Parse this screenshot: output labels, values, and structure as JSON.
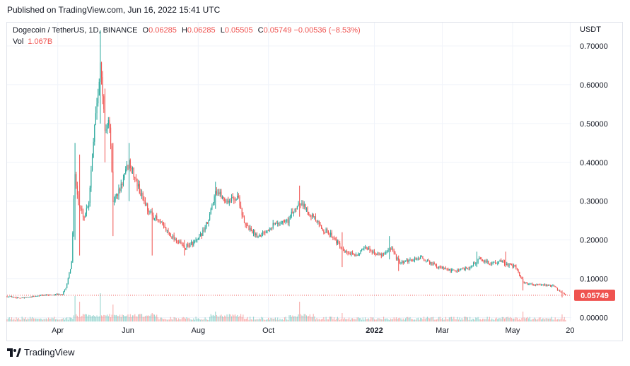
{
  "header": {
    "published": "Published on TradingView.com, Jun 16, 2022 15:41 UTC"
  },
  "legend": {
    "symbol": "Dogecoin / TetherUS, 1D, BINANCE",
    "o_label": "O",
    "o_value": "0.06285",
    "h_label": "H",
    "h_value": "0.06285",
    "l_label": "L",
    "l_value": "0.05505",
    "c_label": "C",
    "c_value": "0.05749",
    "change": "−0.00536 (−8.53%)",
    "vol_label": "Vol",
    "vol_value": "1.067B"
  },
  "currency": "USDT",
  "footer": {
    "brand": "TradingView",
    "logo_icon": "tradingview-logo-icon"
  },
  "colors": {
    "up": "#26a69a",
    "down": "#ef5350",
    "grid": "#f0f3fa",
    "price_line": "#ef5350"
  },
  "chart_data": {
    "type": "candlestick",
    "symbol": "DOGEUSDT",
    "interval": "1D",
    "ylim": [
      -0.01,
      0.76
    ],
    "yticks": [
      0.0,
      0.1,
      0.2,
      0.3,
      0.4,
      0.5,
      0.6,
      0.7
    ],
    "ytick_labels": [
      "0.00000",
      "0.10000",
      "0.20000",
      "0.30000",
      "0.40000",
      "0.50000",
      "0.60000",
      "0.70000"
    ],
    "x_start": "2021-02-16",
    "x_end": "2022-06-21",
    "xticks": [
      {
        "date": "2021-04-01",
        "label": "Apr",
        "bold": false
      },
      {
        "date": "2021-06-01",
        "label": "Jun",
        "bold": false
      },
      {
        "date": "2021-08-01",
        "label": "Aug",
        "bold": false
      },
      {
        "date": "2021-10-01",
        "label": "Oct",
        "bold": false
      },
      {
        "date": "2022-01-01",
        "label": "2022",
        "bold": true
      },
      {
        "date": "2022-03-01",
        "label": "Mar",
        "bold": false
      },
      {
        "date": "2022-05-01",
        "label": "May",
        "bold": false
      },
      {
        "date": "2022-06-20",
        "label": "20",
        "bold": false
      }
    ],
    "last_price": 0.05749,
    "last_price_label": "0.05749",
    "price_path": [
      [
        "2021-02-16",
        0.055
      ],
      [
        "2021-03-01",
        0.05
      ],
      [
        "2021-03-20",
        0.058
      ],
      [
        "2021-04-05",
        0.06
      ],
      [
        "2021-04-08",
        0.075
      ],
      [
        "2021-04-13",
        0.14
      ],
      [
        "2021-04-16",
        0.38
      ],
      [
        "2021-04-19",
        0.29
      ],
      [
        "2021-04-24",
        0.26
      ],
      [
        "2021-04-28",
        0.3
      ],
      [
        "2021-05-03",
        0.5
      ],
      [
        "2021-05-08",
        0.65
      ],
      [
        "2021-05-12",
        0.49
      ],
      [
        "2021-05-16",
        0.5
      ],
      [
        "2021-05-19",
        0.3
      ],
      [
        "2021-05-25",
        0.33
      ],
      [
        "2021-06-02",
        0.4
      ],
      [
        "2021-06-12",
        0.32
      ],
      [
        "2021-06-20",
        0.27
      ],
      [
        "2021-06-27",
        0.25
      ],
      [
        "2021-07-06",
        0.22
      ],
      [
        "2021-07-20",
        0.18
      ],
      [
        "2021-08-01",
        0.2
      ],
      [
        "2021-08-10",
        0.25
      ],
      [
        "2021-08-16",
        0.33
      ],
      [
        "2021-08-25",
        0.3
      ],
      [
        "2021-09-05",
        0.31
      ],
      [
        "2021-09-10",
        0.24
      ],
      [
        "2021-09-22",
        0.21
      ],
      [
        "2021-10-05",
        0.24
      ],
      [
        "2021-10-18",
        0.25
      ],
      [
        "2021-10-28",
        0.3
      ],
      [
        "2021-11-06",
        0.27
      ],
      [
        "2021-11-16",
        0.23
      ],
      [
        "2021-11-26",
        0.21
      ],
      [
        "2021-12-05",
        0.17
      ],
      [
        "2021-12-15",
        0.16
      ],
      [
        "2021-12-25",
        0.18
      ],
      [
        "2022-01-06",
        0.16
      ],
      [
        "2022-01-15",
        0.18
      ],
      [
        "2022-01-23",
        0.14
      ],
      [
        "2022-02-05",
        0.15
      ],
      [
        "2022-02-10",
        0.155
      ],
      [
        "2022-02-25",
        0.13
      ],
      [
        "2022-03-10",
        0.12
      ],
      [
        "2022-03-25",
        0.13
      ],
      [
        "2022-04-02",
        0.15
      ],
      [
        "2022-04-12",
        0.14
      ],
      [
        "2022-04-20",
        0.145
      ],
      [
        "2022-04-28",
        0.135
      ],
      [
        "2022-05-04",
        0.13
      ],
      [
        "2022-05-10",
        0.09
      ],
      [
        "2022-05-20",
        0.085
      ],
      [
        "2022-06-05",
        0.082
      ],
      [
        "2022-06-12",
        0.065
      ],
      [
        "2022-06-16",
        0.0575
      ]
    ],
    "spikes": [
      {
        "date": "2021-04-16",
        "high": 0.45,
        "low": 0.2
      },
      {
        "date": "2021-04-20",
        "high": 0.42,
        "low": 0.16
      },
      {
        "date": "2021-05-08",
        "high": 0.74,
        "low": 0.5
      },
      {
        "date": "2021-05-12",
        "high": 0.59,
        "low": 0.4
      },
      {
        "date": "2021-05-19",
        "high": 0.45,
        "low": 0.21
      },
      {
        "date": "2021-06-02",
        "high": 0.45,
        "low": 0.3
      },
      {
        "date": "2021-06-22",
        "high": 0.28,
        "low": 0.16
      },
      {
        "date": "2021-07-20",
        "high": 0.2,
        "low": 0.16
      },
      {
        "date": "2021-08-16",
        "high": 0.35,
        "low": 0.28
      },
      {
        "date": "2021-10-28",
        "high": 0.34,
        "low": 0.26
      },
      {
        "date": "2021-12-04",
        "high": 0.22,
        "low": 0.13
      },
      {
        "date": "2022-01-14",
        "high": 0.21,
        "low": 0.15
      },
      {
        "date": "2022-01-22",
        "high": 0.16,
        "low": 0.12
      },
      {
        "date": "2022-03-31",
        "high": 0.17,
        "low": 0.13
      },
      {
        "date": "2022-04-25",
        "high": 0.17,
        "low": 0.13
      },
      {
        "date": "2022-05-10",
        "high": 0.105,
        "low": 0.07
      },
      {
        "date": "2022-06-13",
        "high": 0.07,
        "low": 0.052
      }
    ],
    "volume_spikes": [
      {
        "date": "2021-04-16",
        "level": 0.9
      },
      {
        "date": "2021-04-20",
        "level": 0.7
      },
      {
        "date": "2021-05-08",
        "level": 1.0
      },
      {
        "date": "2021-05-19",
        "level": 0.6
      },
      {
        "date": "2021-06-22",
        "level": 0.3
      },
      {
        "date": "2021-08-16",
        "level": 0.35
      },
      {
        "date": "2021-10-28",
        "level": 0.7
      },
      {
        "date": "2021-12-04",
        "level": 0.3
      },
      {
        "date": "2022-05-10",
        "level": 0.35
      },
      {
        "date": "2022-06-13",
        "level": 0.25
      }
    ]
  }
}
